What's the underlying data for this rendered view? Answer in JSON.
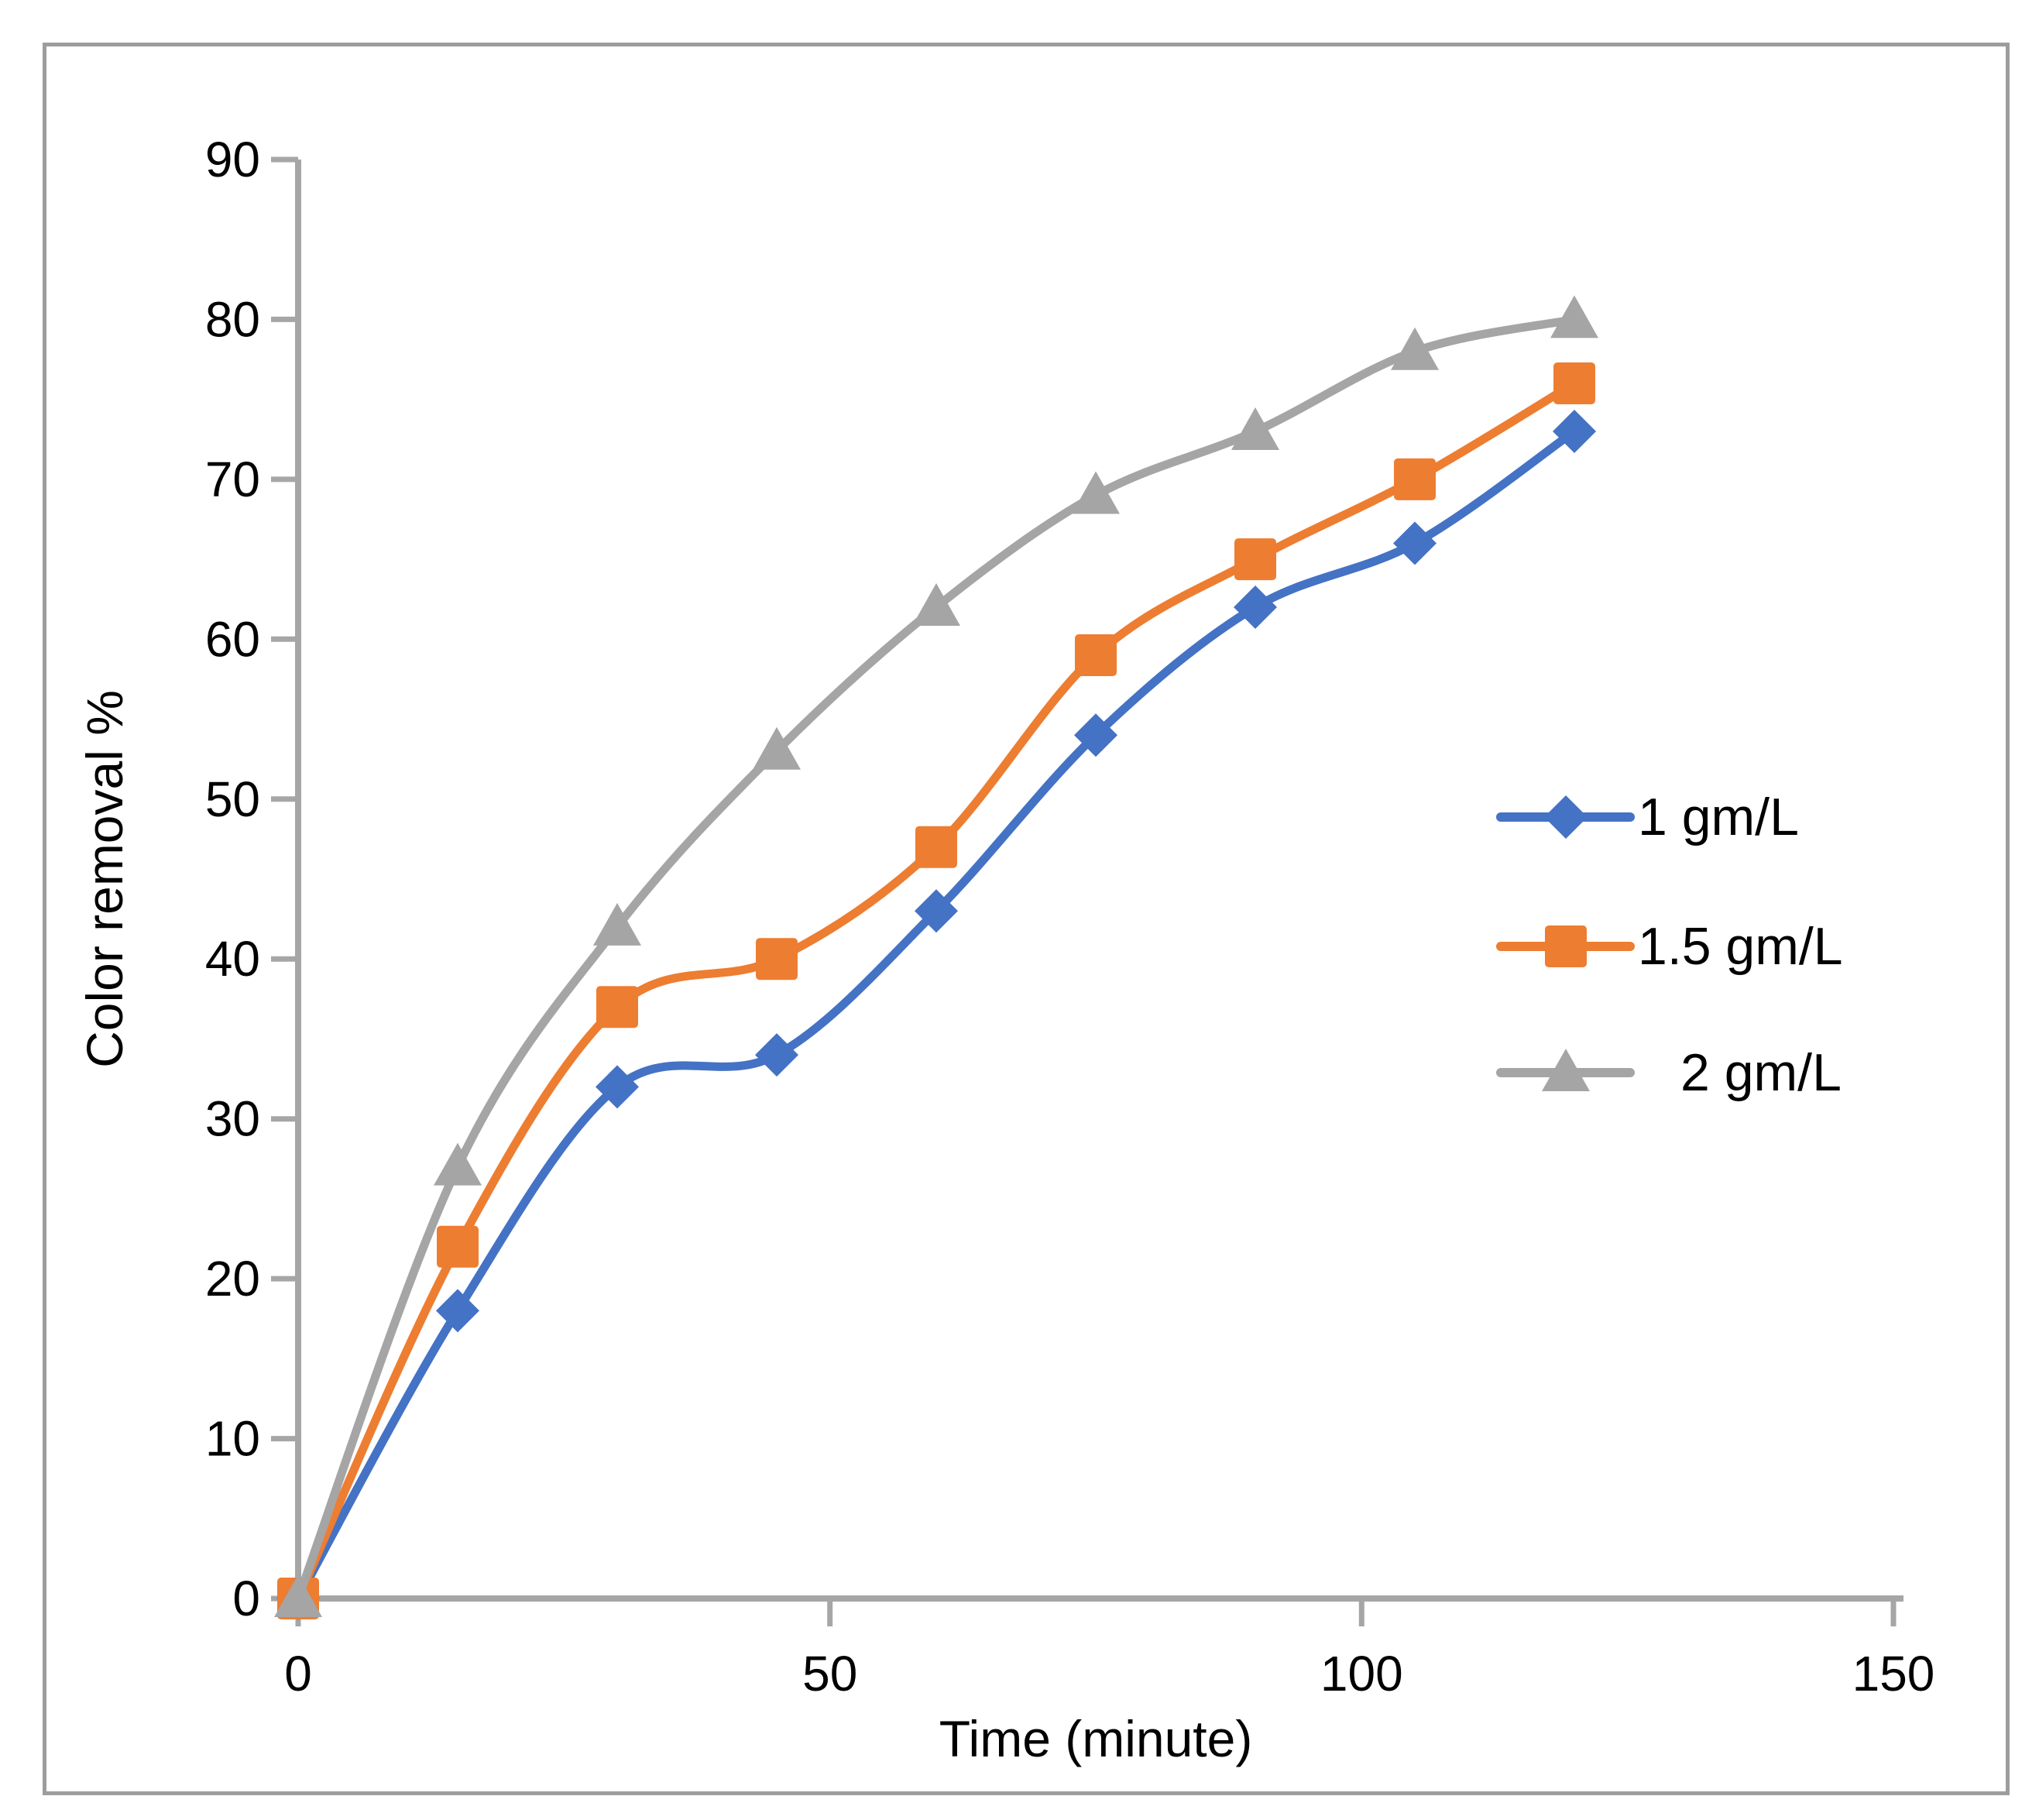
{
  "figure": {
    "background": "#FFFFFF",
    "border_color": "#9D9D9D"
  },
  "axes_style": {
    "axis_color": "#A6A6A6",
    "tick_label_color": "#000000",
    "title_color": "#000000"
  },
  "legend": {
    "position": "right-middle",
    "items": [
      {
        "label": "1 gm/L",
        "marker": "diamond",
        "color": "#4472C4"
      },
      {
        "label": "1.5 gm/L",
        "marker": "square",
        "color": "#ED7D31"
      },
      {
        "label": "2 gm/L",
        "marker": "triangle",
        "color": "#A5A5A5"
      }
    ]
  },
  "chart_data": {
    "type": "line",
    "title": "",
    "xlabel": "Time (minute)",
    "ylabel": "Color removal %",
    "x": [
      0,
      15,
      30,
      45,
      60,
      75,
      90,
      105,
      120
    ],
    "series": [
      {
        "name": "1 gm/L",
        "color": "#4472C4",
        "marker": "diamond",
        "values": [
          0,
          18,
          32,
          34,
          43,
          54,
          62,
          66,
          73
        ]
      },
      {
        "name": "1.5 gm/L",
        "color": "#ED7D31",
        "marker": "square",
        "values": [
          0,
          22,
          37,
          40,
          47,
          59,
          65,
          70,
          76
        ]
      },
      {
        "name": "2 gm/L",
        "color": "#A5A5A5",
        "marker": "triangle",
        "values": [
          0,
          27,
          42,
          53,
          62,
          69,
          73,
          78,
          80
        ]
      }
    ],
    "xlim": [
      0,
      150
    ],
    "ylim": [
      0,
      90
    ],
    "x_ticks": [
      0,
      50,
      100,
      150
    ],
    "y_ticks": [
      0,
      10,
      20,
      30,
      40,
      50,
      60,
      70,
      80,
      90
    ],
    "grid": false,
    "smooth_lines": true,
    "legend_position": "right-middle"
  }
}
